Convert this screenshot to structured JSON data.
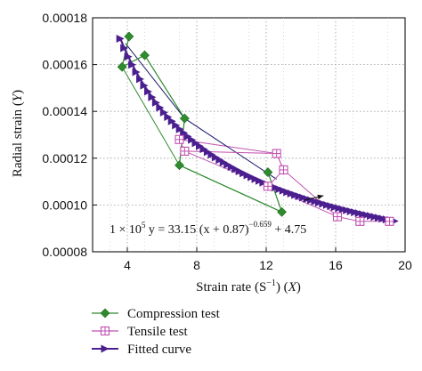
{
  "chart_data": {
    "type": "line",
    "xlabel_text": "Strain rate (S",
    "xlabel_sup": "−1",
    "xlabel_tail": ") (",
    "xlabel_var": "X",
    "xlabel_end": ")",
    "ylabel_text": "Radial strain (",
    "ylabel_var": "Y",
    "ylabel_end": ")",
    "xlim": [
      2,
      20
    ],
    "ylim": [
      8e-05,
      0.00018
    ],
    "x_ticks": [
      4,
      8,
      12,
      16,
      20
    ],
    "y_ticks": [
      8e-05,
      0.0001,
      0.00012,
      0.00014,
      0.00016,
      0.00018
    ],
    "y_tick_labels": [
      "0.00008",
      "0.00010",
      "0.00012",
      "0.00014",
      "0.00016",
      "0.00018"
    ],
    "grid": true,
    "legend_position": "bottom-left, below plot",
    "equation": {
      "prefix": "1 × 10",
      "exp5": "5",
      "mid": " y = 33.15 (x + 0.87)",
      "exp": "−0.659",
      "suffix": " + 4.75"
    },
    "series": [
      {
        "name": "Compression test",
        "color": "#2e8b2e",
        "marker": "diamond",
        "points": [
          [
            4.1,
            0.000172
          ],
          [
            3.7,
            0.000159
          ],
          [
            5.0,
            0.000164
          ],
          [
            7.3,
            0.000137
          ],
          [
            7.0,
            0.000117
          ],
          [
            12.9,
            9.7e-05
          ],
          [
            12.1,
            0.000114
          ]
        ]
      },
      {
        "name": "Tensile test",
        "color": "#c050b0",
        "marker": "square-plus",
        "points": [
          [
            7.0,
            0.000128
          ],
          [
            7.3,
            0.000123
          ],
          [
            12.6,
            0.000122
          ],
          [
            13.0,
            0.000115
          ],
          [
            12.1,
            0.000108
          ],
          [
            16.1,
            9.5e-05
          ],
          [
            17.4,
            9.3e-05
          ],
          [
            19.1,
            9.3e-05
          ]
        ]
      },
      {
        "name": "Fitted curve",
        "color": "#4b1f8f",
        "marker": "triangle-right",
        "equation": {
          "a": 33.15,
          "b": 0.87,
          "n": -0.659,
          "c": 4.75,
          "scale": 1e-05
        },
        "x_start": 3.6,
        "x_end": 19.4,
        "num_points": 70
      }
    ],
    "thin_lines": [
      {
        "color": "#c050b0",
        "points": [
          [
            7.0,
            0.000128
          ],
          [
            12.6,
            0.000122
          ],
          [
            13.0,
            0.000115
          ],
          [
            16.1,
            9.5e-05
          ]
        ]
      },
      {
        "color": "#2e8b2e",
        "points": [
          [
            3.7,
            0.000159
          ],
          [
            7.0,
            0.000117
          ],
          [
            12.9,
            9.7e-05
          ]
        ]
      },
      {
        "color": "#1a1a6e",
        "points": [
          [
            3.9,
            0.000169
          ],
          [
            7.3,
            0.000137
          ],
          [
            12.6,
            0.000111
          ]
        ]
      },
      {
        "color": "#c050b0",
        "points": [
          [
            7.3,
            0.000123
          ],
          [
            12.1,
            0.000108
          ],
          [
            19.1,
            9.3e-05
          ]
        ]
      }
    ],
    "annotation_arrow": {
      "from": [
        14.2,
        0.000102
      ],
      "to": [
        15.3,
        0.000104
      ]
    }
  }
}
